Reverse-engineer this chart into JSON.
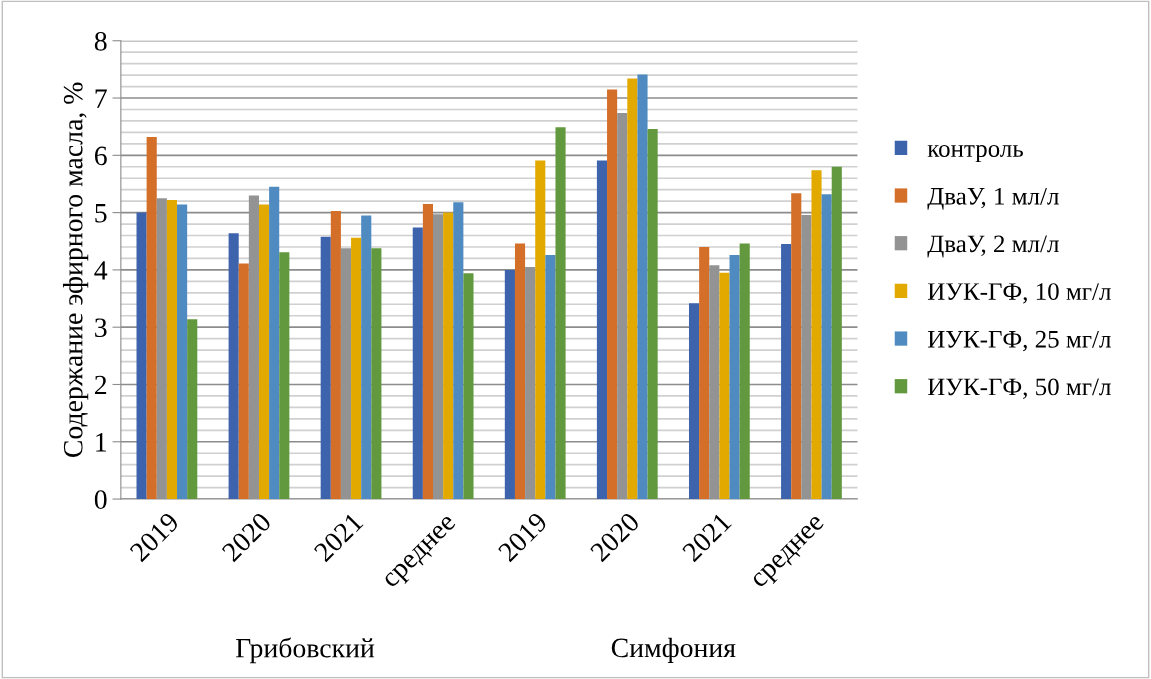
{
  "chart_data": {
    "type": "bar",
    "ylabel": "Содержание эфирного масла, %",
    "categories": [
      "2019",
      "2020",
      "2021",
      "среднее",
      "2019",
      "2020",
      "2021",
      "среднее"
    ],
    "series": [
      {
        "name": "контроль",
        "color": "#3d63ad",
        "values": [
          5.0,
          4.64,
          4.58,
          4.74,
          4.0,
          5.91,
          3.42,
          4.45
        ]
      },
      {
        "name": "ДваУ, 1 мл/л",
        "color": "#d46f2a",
        "values": [
          6.32,
          4.11,
          5.03,
          5.15,
          4.46,
          7.15,
          4.4,
          5.34
        ]
      },
      {
        "name": "ДваУ, 2 мл/л",
        "color": "#939393",
        "values": [
          5.25,
          5.3,
          4.38,
          4.97,
          4.05,
          6.74,
          4.08,
          4.96
        ]
      },
      {
        "name": "ИУК-ГФ, 10 мг/л",
        "color": "#e2aa00",
        "values": [
          5.22,
          5.14,
          4.56,
          5.0,
          5.91,
          7.34,
          3.95,
          5.74
        ]
      },
      {
        "name": "ИУК-ГФ, 25 мг/л",
        "color": "#4f8bc0",
        "values": [
          5.14,
          5.45,
          4.95,
          5.18,
          4.26,
          7.41,
          4.26,
          5.32
        ]
      },
      {
        "name": "ИУК-ГФ, 50 мг/л",
        "color": "#62993e",
        "values": [
          3.14,
          4.31,
          4.38,
          3.94,
          6.49,
          6.46,
          4.46,
          5.8
        ]
      }
    ],
    "ylim": [
      0,
      8
    ],
    "yticks": [
      0,
      1,
      2,
      3,
      4,
      5,
      6,
      7,
      8
    ],
    "grid": "y",
    "legend": "right",
    "annotations": [
      "Грибовский",
      "Симфония"
    ]
  }
}
